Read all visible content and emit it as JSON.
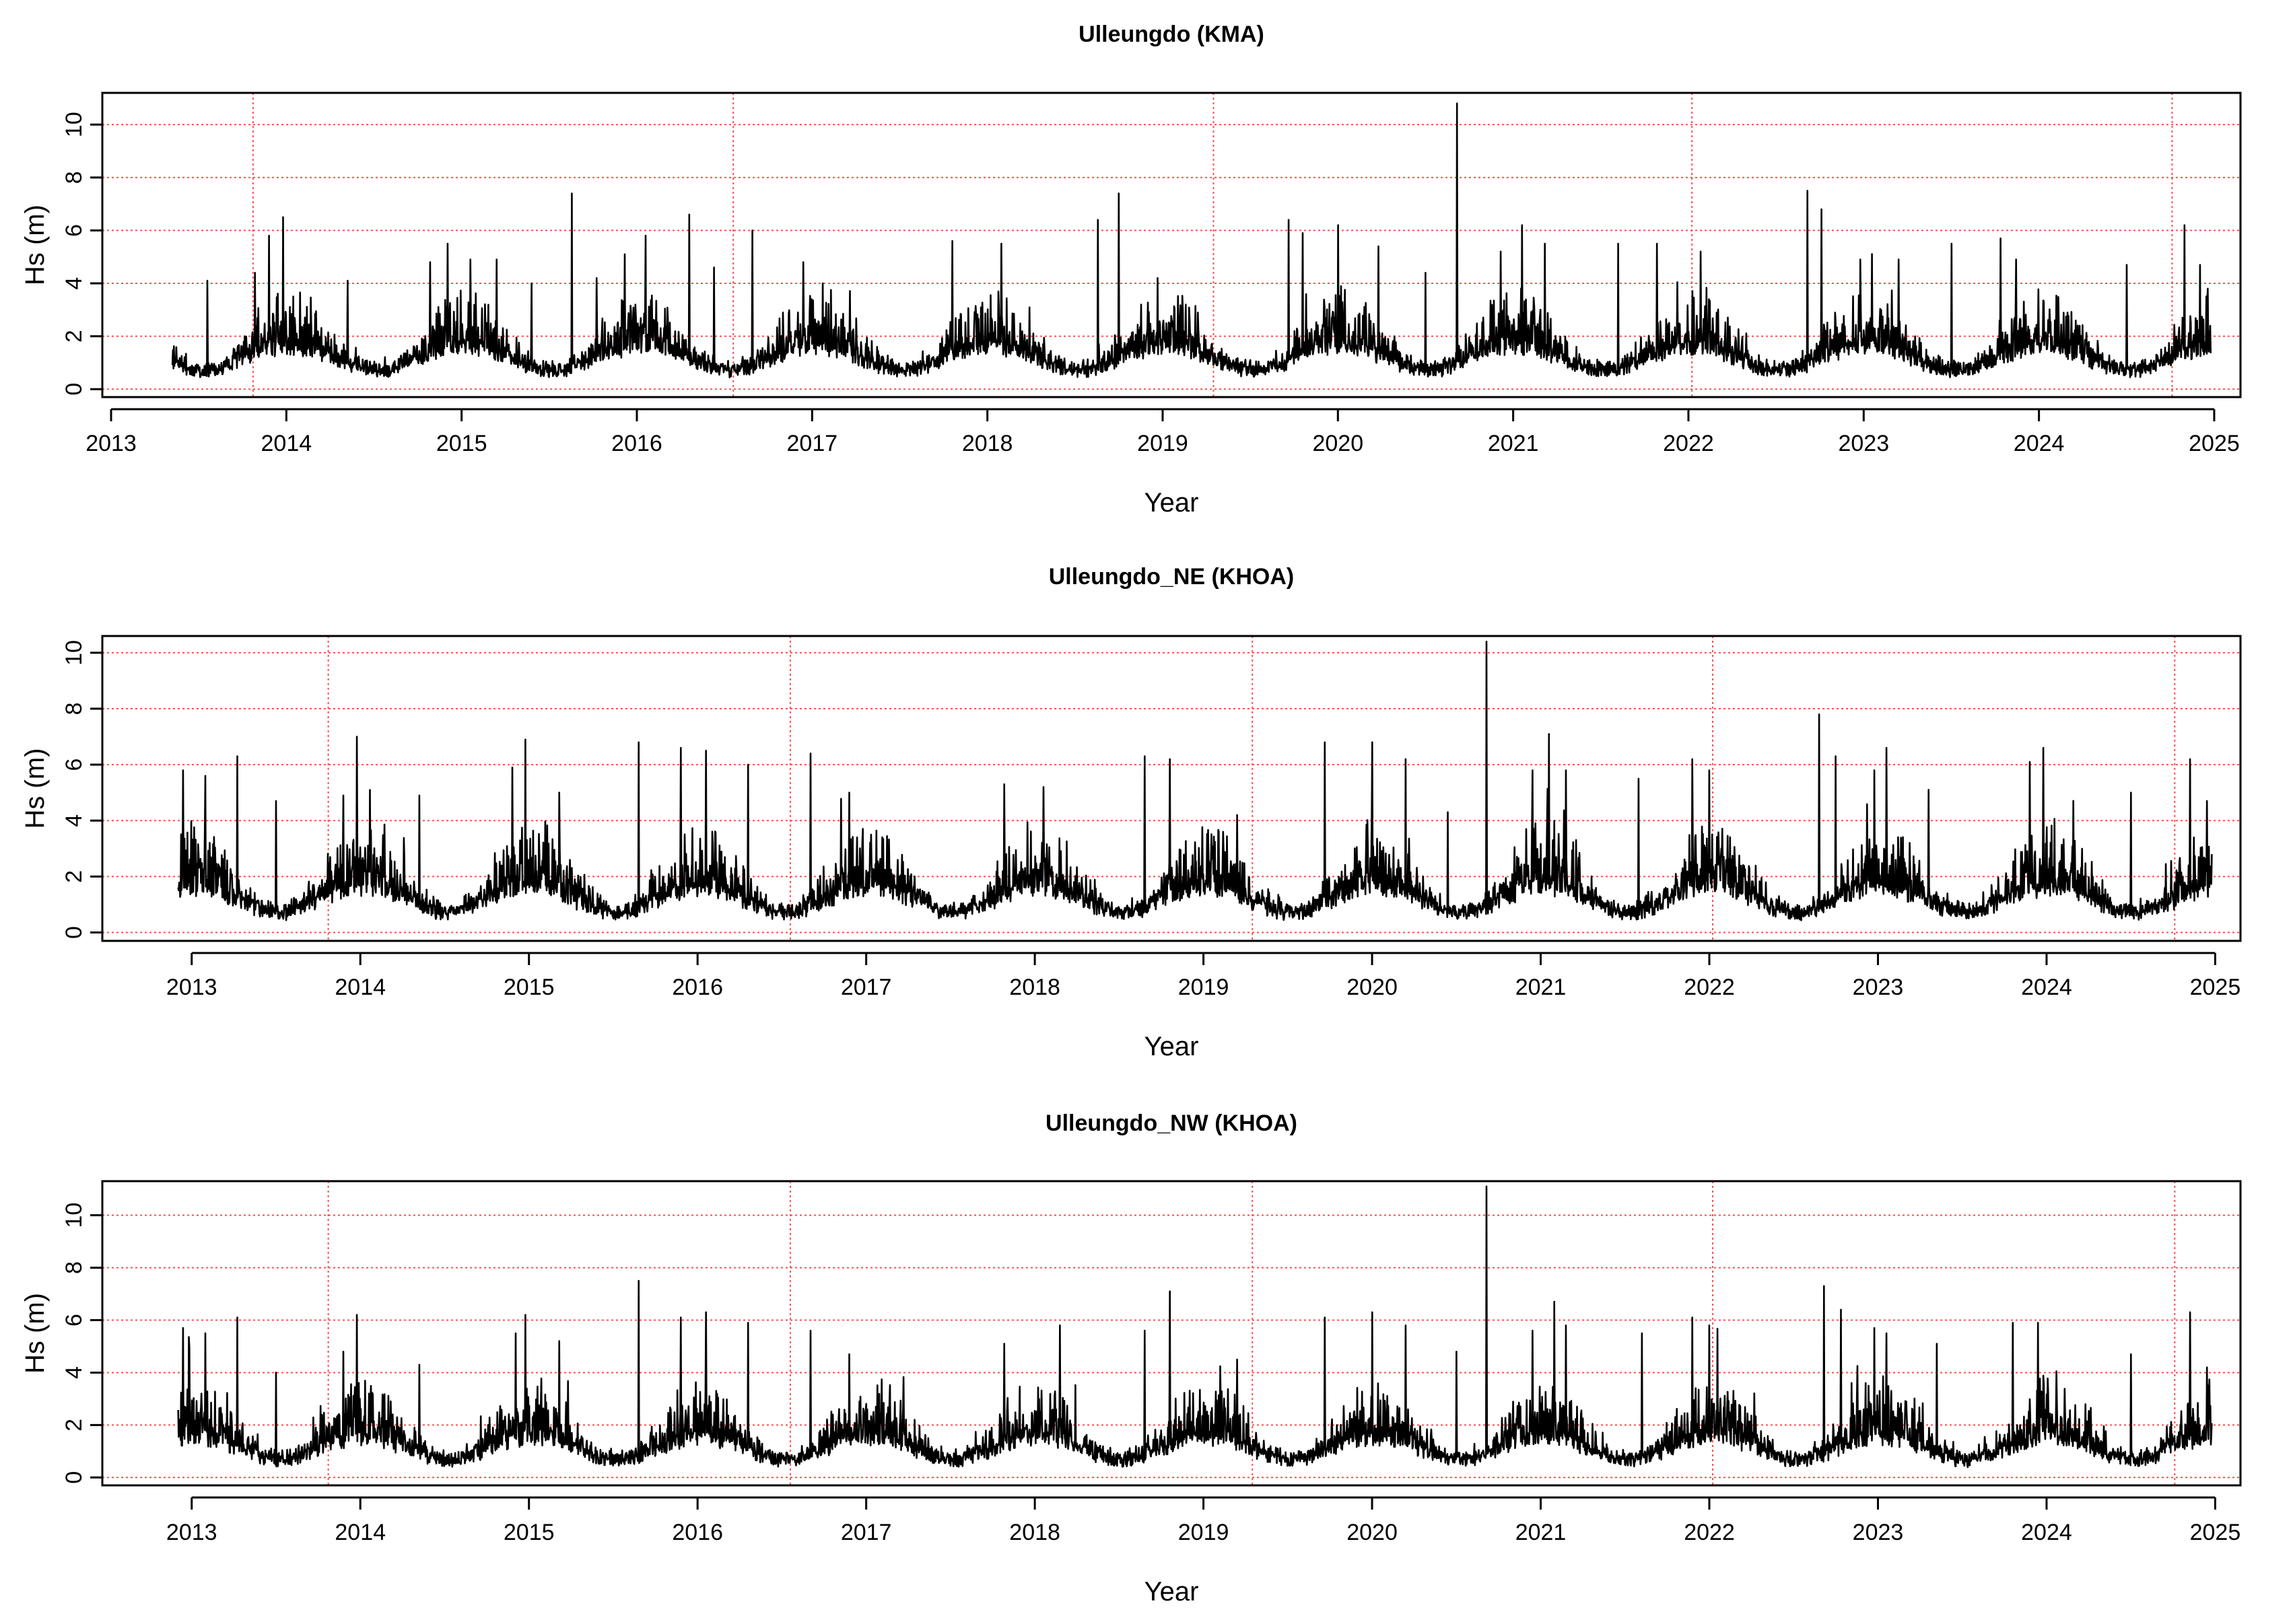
{
  "figure": {
    "panels": [
      {
        "id": "kma",
        "title": "Ulleungdo (KMA)",
        "xlabel": "Year",
        "ylabel": "Hs (m)",
        "start_year": 2013.35,
        "end_year": 2024.98
      },
      {
        "id": "khoa_ne",
        "title": "Ulleungdo_NE (KHOA)",
        "xlabel": "Year",
        "ylabel": "Hs (m)",
        "start_year": 2012.92,
        "end_year": 2024.98
      },
      {
        "id": "khoa_nw",
        "title": "Ulleungdo_NW (KHOA)",
        "xlabel": "Year",
        "ylabel": "Hs (m)",
        "start_year": 2012.92,
        "end_year": 2024.98
      }
    ]
  },
  "chart_data": [
    {
      "type": "line",
      "title": "Ulleungdo (KMA)",
      "xlabel": "Year",
      "ylabel": "Hs (m)",
      "xlim": [
        2012.95,
        2025.15
      ],
      "ylim": [
        -0.3,
        11.2
      ],
      "xticks": [
        "2013",
        "2014",
        "2015",
        "2016",
        "2017",
        "2018",
        "2019",
        "2020",
        "2021",
        "2022",
        "2023",
        "2024",
        "2025"
      ],
      "yticks": [
        "0",
        "2",
        "4",
        "6",
        "8",
        "10"
      ],
      "ygrid": [
        0,
        2,
        4,
        6,
        8,
        10
      ],
      "vlines": [
        2013.81,
        2016.55,
        2019.29,
        2022.02,
        2024.76
      ],
      "grid_color": "#ff4d4d",
      "series_color": "#000000",
      "series": [
        {
          "name": "Hs",
          "x_start": 2013.35,
          "x_end": 2024.98,
          "base": 1.05,
          "amplitude": 1.4
        }
      ],
      "peaks": [
        [
          2013.55,
          4.1
        ],
        [
          2013.82,
          4.4
        ],
        [
          2013.9,
          5.8
        ],
        [
          2013.98,
          6.5
        ],
        [
          2014.35,
          4.1
        ],
        [
          2014.82,
          4.8
        ],
        [
          2014.92,
          5.5
        ],
        [
          2015.05,
          4.9
        ],
        [
          2015.2,
          4.9
        ],
        [
          2015.4,
          4.0
        ],
        [
          2015.63,
          7.4
        ],
        [
          2015.77,
          4.2
        ],
        [
          2015.93,
          5.1
        ],
        [
          2016.05,
          5.8
        ],
        [
          2016.3,
          6.6
        ],
        [
          2016.44,
          4.6
        ],
        [
          2016.66,
          6.0
        ],
        [
          2016.95,
          4.8
        ],
        [
          2017.8,
          5.6
        ],
        [
          2018.08,
          5.5
        ],
        [
          2018.63,
          6.4
        ],
        [
          2018.75,
          7.4
        ],
        [
          2018.97,
          4.2
        ],
        [
          2019.72,
          6.4
        ],
        [
          2019.8,
          5.9
        ],
        [
          2020.0,
          6.2
        ],
        [
          2020.23,
          5.4
        ],
        [
          2020.5,
          4.4
        ],
        [
          2020.68,
          10.8
        ],
        [
          2020.93,
          5.2
        ],
        [
          2021.05,
          6.2
        ],
        [
          2021.18,
          5.5
        ],
        [
          2021.6,
          5.5
        ],
        [
          2021.82,
          5.5
        ],
        [
          2022.07,
          5.2
        ],
        [
          2022.68,
          7.5
        ],
        [
          2022.76,
          6.8
        ],
        [
          2022.98,
          4.9
        ],
        [
          2023.2,
          4.9
        ],
        [
          2023.5,
          5.5
        ],
        [
          2023.78,
          5.7
        ],
        [
          2023.87,
          4.9
        ],
        [
          2024.5,
          4.7
        ],
        [
          2024.83,
          6.2
        ],
        [
          2024.92,
          4.7
        ]
      ]
    },
    {
      "type": "line",
      "title": "Ulleungdo_NE (KHOA)",
      "xlabel": "Year",
      "ylabel": "Hs (m)",
      "xlim": [
        2012.47,
        2025.15
      ],
      "ylim": [
        -0.3,
        10.6
      ],
      "xticks": [
        "2013",
        "2014",
        "2015",
        "2016",
        "2017",
        "2018",
        "2019",
        "2020",
        "2021",
        "2022",
        "2023",
        "2024",
        "2025"
      ],
      "yticks": [
        "0",
        "2",
        "4",
        "6",
        "8",
        "10"
      ],
      "ygrid": [
        0,
        2,
        4,
        6,
        8,
        10
      ],
      "vlines": [
        2013.81,
        2016.55,
        2019.29,
        2022.02,
        2024.76
      ],
      "grid_color": "#ff4d4d",
      "series_color": "#000000",
      "series": [
        {
          "name": "Hs",
          "x_start": 2012.92,
          "x_end": 2024.98,
          "base": 1.05,
          "amplitude": 1.5
        }
      ],
      "peaks": [
        [
          2012.95,
          5.8
        ],
        [
          2013.08,
          5.6
        ],
        [
          2013.27,
          6.3
        ],
        [
          2013.5,
          4.7
        ],
        [
          2013.9,
          4.9
        ],
        [
          2013.98,
          7.0
        ],
        [
          2014.35,
          4.9
        ],
        [
          2014.9,
          5.9
        ],
        [
          2014.98,
          6.9
        ],
        [
          2015.18,
          5.0
        ],
        [
          2015.65,
          6.8
        ],
        [
          2015.9,
          6.6
        ],
        [
          2016.05,
          6.5
        ],
        [
          2016.3,
          6.0
        ],
        [
          2016.67,
          6.4
        ],
        [
          2016.9,
          5.0
        ],
        [
          2017.82,
          5.3
        ],
        [
          2018.05,
          5.2
        ],
        [
          2018.65,
          6.3
        ],
        [
          2018.8,
          6.2
        ],
        [
          2019.2,
          4.2
        ],
        [
          2019.72,
          6.8
        ],
        [
          2020.0,
          6.8
        ],
        [
          2020.2,
          6.2
        ],
        [
          2020.45,
          4.3
        ],
        [
          2020.68,
          10.4
        ],
        [
          2020.95,
          5.8
        ],
        [
          2021.05,
          7.1
        ],
        [
          2021.15,
          5.8
        ],
        [
          2021.58,
          5.5
        ],
        [
          2021.9,
          6.2
        ],
        [
          2022.0,
          5.8
        ],
        [
          2022.65,
          7.8
        ],
        [
          2022.75,
          6.3
        ],
        [
          2022.98,
          5.8
        ],
        [
          2023.05,
          6.6
        ],
        [
          2023.3,
          5.1
        ],
        [
          2023.9,
          6.1
        ],
        [
          2023.98,
          6.6
        ],
        [
          2024.5,
          5.0
        ],
        [
          2024.85,
          6.2
        ],
        [
          2024.95,
          4.7
        ]
      ]
    },
    {
      "type": "line",
      "title": "Ulleungdo_NW (KHOA)",
      "xlabel": "Year",
      "ylabel": "Hs (m)",
      "xlim": [
        2012.47,
        2025.15
      ],
      "ylim": [
        -0.3,
        11.3
      ],
      "xticks": [
        "2013",
        "2014",
        "2015",
        "2016",
        "2017",
        "2018",
        "2019",
        "2020",
        "2021",
        "2022",
        "2023",
        "2024",
        "2025"
      ],
      "yticks": [
        "0",
        "2",
        "4",
        "6",
        "8",
        "10"
      ],
      "ygrid": [
        0,
        2,
        4,
        6,
        8,
        10
      ],
      "vlines": [
        2013.81,
        2016.55,
        2019.29,
        2022.02,
        2024.76
      ],
      "grid_color": "#ff4d4d",
      "series_color": "#000000",
      "series": [
        {
          "name": "Hs",
          "x_start": 2012.92,
          "x_end": 2024.98,
          "base": 1.0,
          "amplitude": 1.45
        }
      ],
      "peaks": [
        [
          2012.95,
          5.7
        ],
        [
          2013.08,
          5.5
        ],
        [
          2013.27,
          6.1
        ],
        [
          2013.5,
          4.0
        ],
        [
          2013.9,
          4.8
        ],
        [
          2013.98,
          6.2
        ],
        [
          2014.35,
          4.3
        ],
        [
          2014.92,
          5.5
        ],
        [
          2014.98,
          6.2
        ],
        [
          2015.18,
          5.2
        ],
        [
          2015.65,
          7.5
        ],
        [
          2015.9,
          6.1
        ],
        [
          2016.05,
          6.3
        ],
        [
          2016.3,
          5.9
        ],
        [
          2016.67,
          5.6
        ],
        [
          2016.9,
          4.7
        ],
        [
          2017.82,
          5.1
        ],
        [
          2018.15,
          5.8
        ],
        [
          2018.65,
          5.6
        ],
        [
          2018.8,
          7.1
        ],
        [
          2019.2,
          4.5
        ],
        [
          2019.72,
          6.1
        ],
        [
          2020.0,
          6.3
        ],
        [
          2020.2,
          5.8
        ],
        [
          2020.5,
          4.8
        ],
        [
          2020.68,
          11.1
        ],
        [
          2020.95,
          5.6
        ],
        [
          2021.08,
          6.7
        ],
        [
          2021.15,
          5.8
        ],
        [
          2021.6,
          5.5
        ],
        [
          2021.9,
          6.1
        ],
        [
          2022.0,
          5.8
        ],
        [
          2022.68,
          7.3
        ],
        [
          2022.78,
          6.4
        ],
        [
          2022.98,
          5.7
        ],
        [
          2023.05,
          5.5
        ],
        [
          2023.35,
          5.1
        ],
        [
          2023.8,
          5.9
        ],
        [
          2023.95,
          5.9
        ],
        [
          2024.5,
          4.7
        ],
        [
          2024.85,
          6.3
        ],
        [
          2024.95,
          4.2
        ]
      ]
    }
  ]
}
